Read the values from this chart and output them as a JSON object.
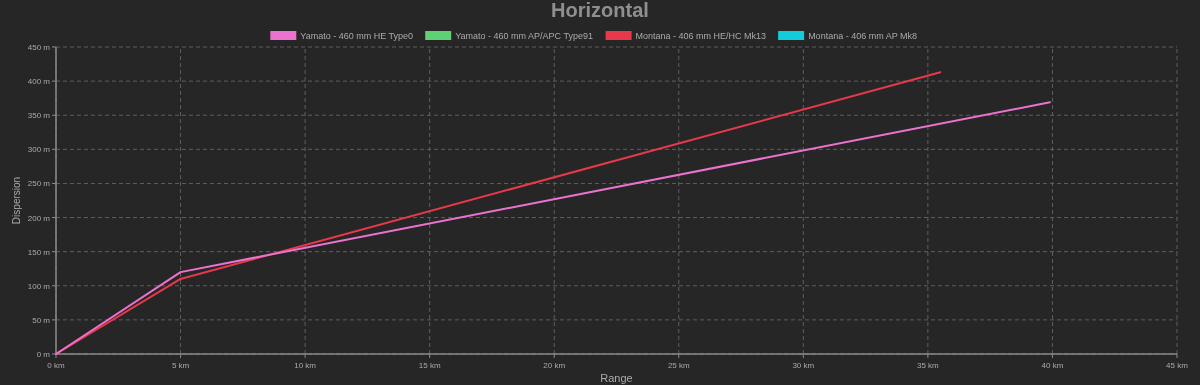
{
  "chart_data": {
    "type": "line",
    "title": "Horizontal",
    "xlabel": "Range",
    "ylabel": "Dispersion",
    "xlim": [
      0,
      45
    ],
    "ylim": [
      0,
      450
    ],
    "xticks": [
      {
        "value": 0,
        "label": "0 km"
      },
      {
        "value": 5,
        "label": "5 km"
      },
      {
        "value": 10,
        "label": "10 km"
      },
      {
        "value": 15,
        "label": "15 km"
      },
      {
        "value": 20,
        "label": "20 km"
      },
      {
        "value": 25,
        "label": "25 km"
      },
      {
        "value": 30,
        "label": "30 km"
      },
      {
        "value": 35,
        "label": "35 km"
      },
      {
        "value": 40,
        "label": "40 km"
      },
      {
        "value": 45,
        "label": "45 km"
      }
    ],
    "yticks": [
      {
        "value": 0,
        "label": "0 m"
      },
      {
        "value": 50,
        "label": "50 m"
      },
      {
        "value": 100,
        "label": "100 m"
      },
      {
        "value": 150,
        "label": "150 m"
      },
      {
        "value": 200,
        "label": "200 m"
      },
      {
        "value": 250,
        "label": "250 m"
      },
      {
        "value": 300,
        "label": "300 m"
      },
      {
        "value": 350,
        "label": "350 m"
      },
      {
        "value": 400,
        "label": "400 m"
      },
      {
        "value": 450,
        "label": "450 m"
      }
    ],
    "grid": true,
    "legend": "top",
    "marker": "none",
    "line_style": "solid",
    "series": [
      {
        "name": "Yamato - 460 mm AP/APC Type91",
        "color": "#5fd173"
      },
      {
        "name": "Montana - 406 mm AP Mk8",
        "color": "#12cbdb"
      },
      {
        "name": "Montana - 406 mm HE/HC Mk13",
        "color": "#e8394a",
        "x": [
          0,
          5,
          35.5
        ],
        "values": [
          0,
          110,
          413
        ]
      },
      {
        "name": "Yamato - 460 mm HE Type0",
        "color": "#ec72cf",
        "x": [
          0,
          5,
          39.9
        ],
        "values": [
          0,
          120,
          369
        ]
      }
    ]
  }
}
